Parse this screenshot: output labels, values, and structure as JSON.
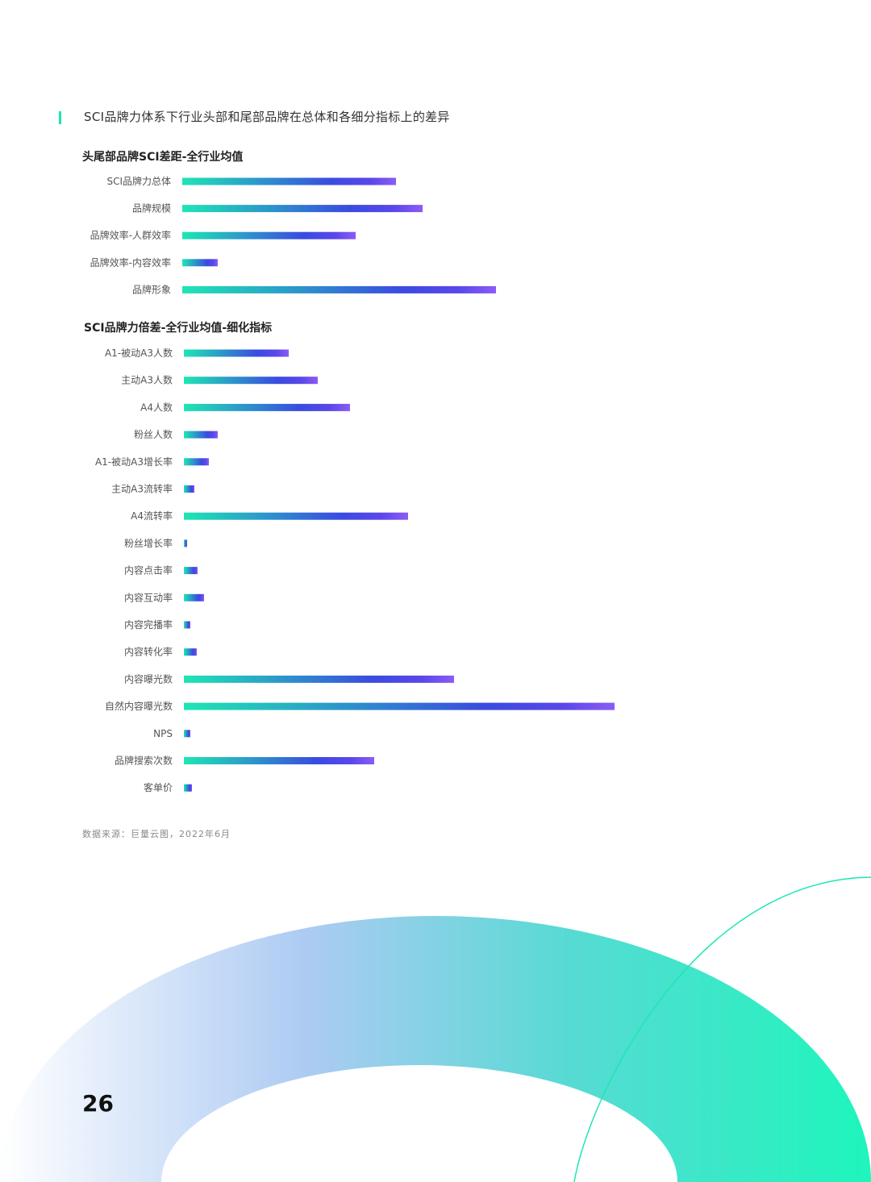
{
  "header": {
    "title": "SCI品牌力体系下行业头部和尾部品牌在总体和各细分指标上的差异"
  },
  "colors": {
    "accent": "#1ee6b4",
    "bar_start": "#1ee6b4",
    "bar_mid": "#3a4be0",
    "bar_end": "#8b5cf6"
  },
  "chart_data": [
    {
      "type": "bar",
      "orientation": "horizontal",
      "title": "头尾部品牌SCI差距-全行业均值",
      "categories": [
        "SCI品牌力总体",
        "品牌规模",
        "品牌效率-人群效率",
        "品牌效率-内容效率",
        "品牌形象"
      ],
      "values": [
        265,
        298,
        215,
        44,
        389
      ],
      "xlim": [
        0,
        540
      ]
    },
    {
      "type": "bar",
      "orientation": "horizontal",
      "title": "SCI品牌力倍差-全行业均值-细化指标",
      "categories": [
        "A1-被动A3人数",
        "主动A3人数",
        "A4人数",
        "粉丝人数",
        "A1-被动A3增长率",
        "主动A3流转率",
        "A4流转率",
        "粉丝增长率",
        "内容点击率",
        "内容互动率",
        "内容完播率",
        "内容转化率",
        "内容曝光数",
        "自然内容曝光数",
        "NPS",
        "品牌搜索次数",
        "客单价"
      ],
      "values": [
        130,
        166,
        206,
        42,
        31,
        13,
        278,
        4,
        17,
        25,
        8,
        16,
        335,
        534,
        8,
        236,
        10
      ],
      "xlim": [
        0,
        540
      ]
    }
  ],
  "footer": {
    "source": "数据来源：巨量云图，2022年6月",
    "page_number": "26"
  }
}
